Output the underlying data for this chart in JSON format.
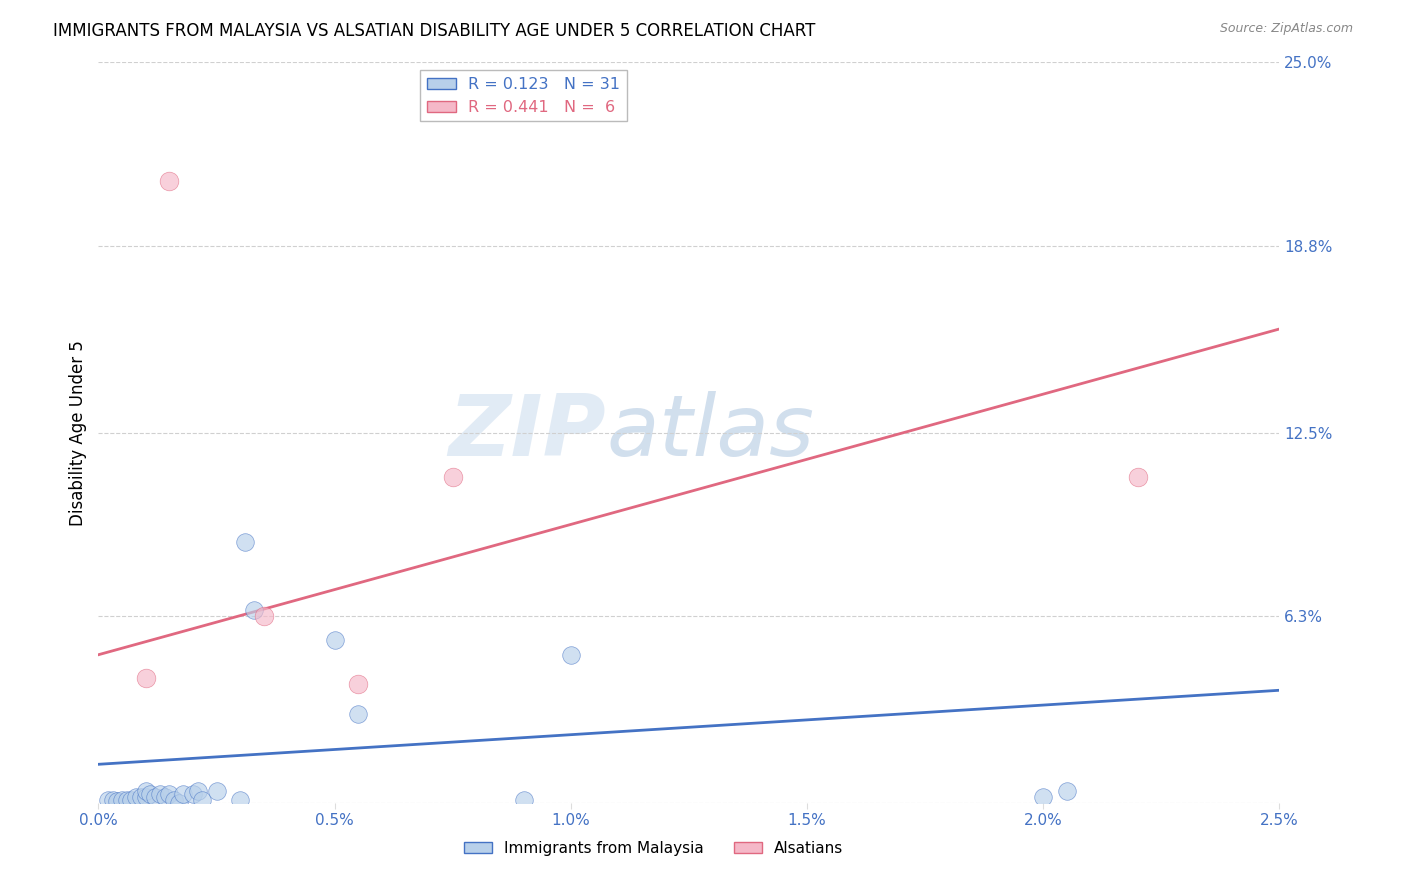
{
  "title": "IMMIGRANTS FROM MALAYSIA VS ALSATIAN DISABILITY AGE UNDER 5 CORRELATION CHART",
  "source": "Source: ZipAtlas.com",
  "ylabel": "Disability Age Under 5",
  "xlim": [
    0.0,
    0.025
  ],
  "ylim": [
    0.0,
    0.25
  ],
  "ytick_labels_right": [
    "25.0%",
    "18.8%",
    "12.5%",
    "6.3%"
  ],
  "ytick_values": [
    0.25,
    0.188,
    0.125,
    0.063
  ],
  "ytick_bottom": 0.0,
  "xtick_labels": [
    "0.0%",
    "0.5%",
    "1.0%",
    "1.5%",
    "2.0%",
    "2.5%"
  ],
  "xtick_values": [
    0.0,
    0.005,
    0.01,
    0.015,
    0.02,
    0.025
  ],
  "blue_R": 0.123,
  "blue_N": 31,
  "pink_R": 0.441,
  "pink_N": 6,
  "blue_fill": "#b8d0ea",
  "pink_fill": "#f5b8c8",
  "blue_edge": "#4472c4",
  "pink_edge": "#e06880",
  "legend_label_blue": "Immigrants from Malaysia",
  "legend_label_pink": "Alsatians",
  "watermark_zip": "ZIP",
  "watermark_atlas": "atlas",
  "blue_x": [
    0.0002,
    0.0003,
    0.0004,
    0.0005,
    0.0006,
    0.0007,
    0.0008,
    0.0009,
    0.001,
    0.001,
    0.0011,
    0.0012,
    0.0013,
    0.0014,
    0.0015,
    0.0016,
    0.0017,
    0.0018,
    0.002,
    0.0021,
    0.0022,
    0.0025,
    0.003,
    0.0031,
    0.0033,
    0.005,
    0.0055,
    0.009,
    0.01,
    0.02,
    0.0205
  ],
  "blue_y": [
    0.001,
    0.001,
    0.0005,
    0.001,
    0.001,
    0.001,
    0.002,
    0.002,
    0.002,
    0.004,
    0.003,
    0.002,
    0.003,
    0.002,
    0.003,
    0.001,
    0.0,
    0.003,
    0.003,
    0.004,
    0.001,
    0.004,
    0.001,
    0.088,
    0.065,
    0.055,
    0.03,
    0.001,
    0.05,
    0.002,
    0.004
  ],
  "pink_x": [
    0.001,
    0.0015,
    0.0035,
    0.0055,
    0.0075,
    0.022
  ],
  "pink_y": [
    0.042,
    0.21,
    0.063,
    0.04,
    0.11,
    0.11
  ],
  "blue_trendline_x": [
    0.0,
    0.025
  ],
  "blue_trendline_y": [
    0.013,
    0.038
  ],
  "pink_trendline_x": [
    0.0,
    0.025
  ],
  "pink_trendline_y": [
    0.05,
    0.16
  ]
}
